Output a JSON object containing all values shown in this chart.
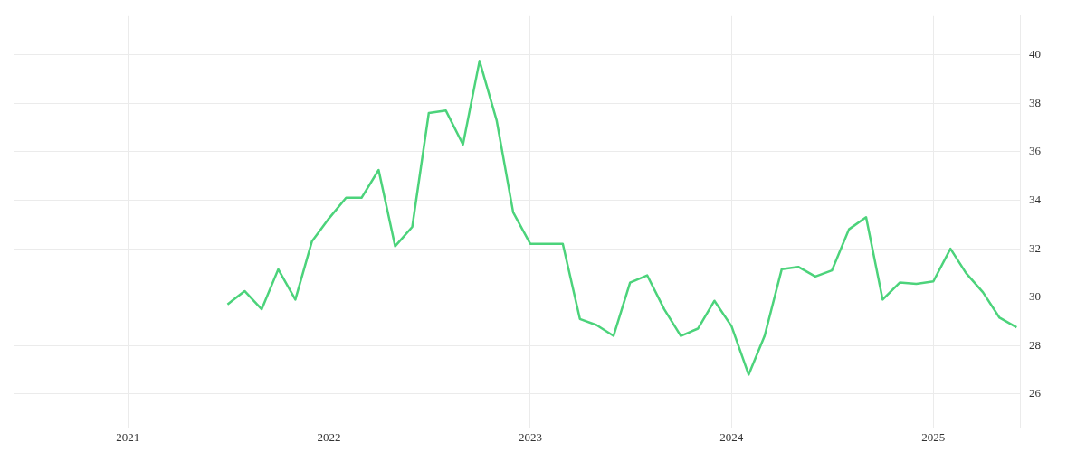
{
  "chart_data": {
    "type": "line",
    "x": [
      "2021-07",
      "2021-08",
      "2021-09",
      "2021-10",
      "2021-11",
      "2021-12",
      "2022-01",
      "2022-02",
      "2022-03",
      "2022-04",
      "2022-05",
      "2022-06",
      "2022-07",
      "2022-08",
      "2022-09",
      "2022-10",
      "2022-11",
      "2022-12",
      "2023-01",
      "2023-02",
      "2023-03",
      "2023-04",
      "2023-05",
      "2023-06",
      "2023-07",
      "2023-08",
      "2023-09",
      "2023-10",
      "2023-11",
      "2023-12",
      "2024-01",
      "2024-02",
      "2024-03",
      "2024-04",
      "2024-05",
      "2024-06",
      "2024-07",
      "2024-08",
      "2024-09",
      "2024-10",
      "2024-11",
      "2024-12",
      "2025-01",
      "2025-02",
      "2025-03",
      "2025-04",
      "2025-05",
      "2025-06"
    ],
    "series": [
      {
        "color": "#4cd37b",
        "values": [
          29.7,
          30.25,
          29.5,
          31.15,
          29.9,
          32.3,
          33.25,
          34.1,
          34.1,
          35.25,
          32.1,
          32.9,
          37.6,
          37.7,
          36.3,
          39.75,
          37.3,
          33.5,
          32.2,
          32.2,
          32.2,
          29.1,
          28.85,
          28.4,
          30.6,
          30.9,
          29.5,
          28.4,
          28.7,
          29.85,
          28.8,
          26.8,
          28.4,
          31.15,
          31.25,
          30.85,
          31.1,
          32.8,
          33.3,
          29.9,
          30.6,
          30.55,
          30.65,
          32.0,
          31.0,
          30.2,
          29.15,
          28.75
        ]
      }
    ],
    "xlim": [
      "2020-06-08",
      "2025-06-07"
    ],
    "xticks": [
      "2021",
      "2022",
      "2023",
      "2024",
      "2025"
    ],
    "ylim": [
      24.6,
      41.6
    ],
    "yticks": [
      26,
      28,
      30,
      32,
      34,
      36,
      38,
      40
    ],
    "grid": true,
    "legend": false,
    "marker": "none",
    "line_style": "solid"
  }
}
